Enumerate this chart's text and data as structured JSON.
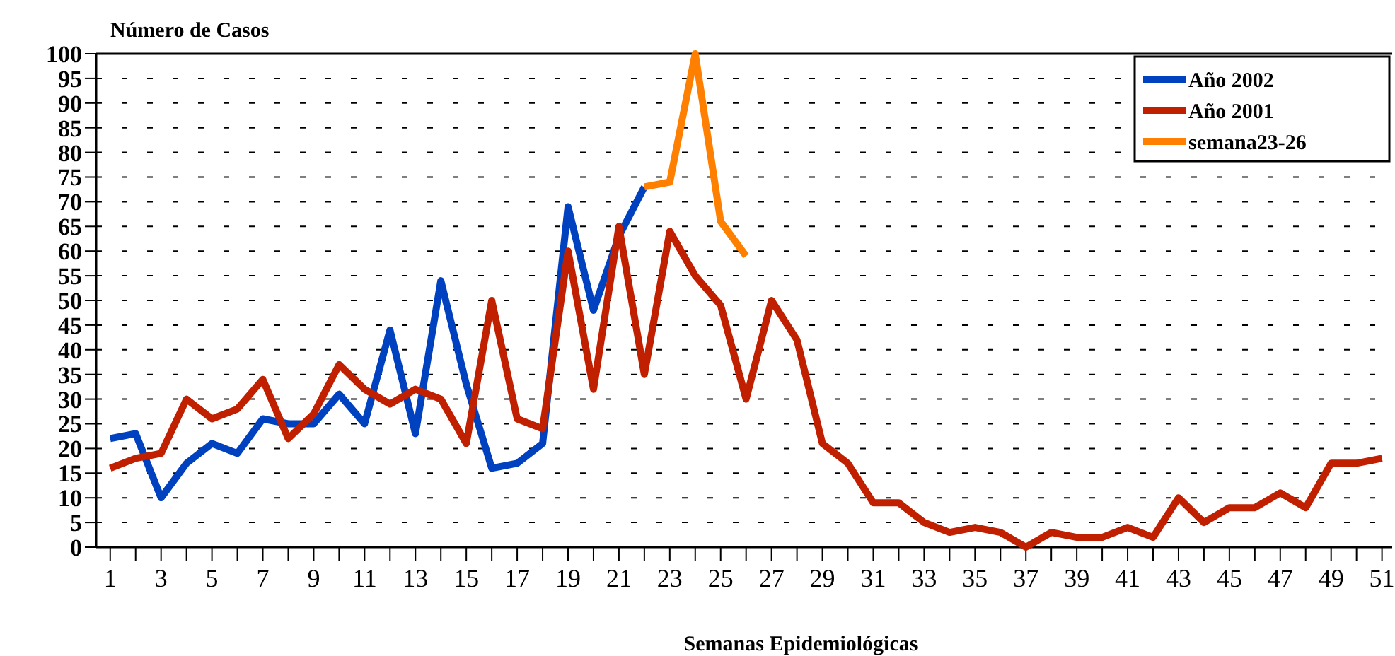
{
  "chart_data": {
    "type": "line",
    "ylabel": "Número de Casos",
    "xlabel": "Semanas Epidemiológicas",
    "xlim": [
      0.45,
      51.4
    ],
    "xticks": [
      1,
      {
        "value": 2,
        "label": null
      },
      3,
      {
        "value": 4,
        "label": null
      },
      5,
      {
        "value": 6,
        "label": null
      },
      7,
      {
        "value": 8,
        "label": null
      },
      9,
      {
        "value": 10,
        "label": null
      },
      11,
      {
        "value": 12,
        "label": null
      },
      13,
      {
        "value": 14,
        "label": null
      },
      15,
      {
        "value": 16,
        "label": null
      },
      17,
      {
        "value": 18,
        "label": null
      },
      19,
      {
        "value": 20,
        "label": null
      },
      21,
      {
        "value": 22,
        "label": null
      },
      23,
      {
        "value": 24,
        "label": null
      },
      25,
      {
        "value": 26,
        "label": null
      },
      27,
      {
        "value": 28,
        "label": null
      },
      29,
      {
        "value": 30,
        "label": null
      },
      31,
      {
        "value": 32,
        "label": null
      },
      33,
      {
        "value": 34,
        "label": null
      },
      35,
      {
        "value": 36,
        "label": null
      },
      37,
      {
        "value": 38,
        "label": null
      },
      39,
      {
        "value": 40,
        "label": null
      },
      41,
      {
        "value": 42,
        "label": null
      },
      43,
      {
        "value": 44,
        "label": null
      },
      45,
      {
        "value": 46,
        "label": null
      },
      47,
      {
        "value": 48,
        "label": null
      },
      49,
      {
        "value": 50,
        "label": null
      },
      51
    ],
    "ylim": [
      0,
      100
    ],
    "yticks": [
      0,
      5,
      10,
      15,
      20,
      25,
      30,
      35,
      40,
      45,
      50,
      55,
      60,
      65,
      70,
      75,
      80,
      85,
      90,
      95,
      100
    ],
    "grid": "y",
    "legend": "top right",
    "line_style": "solid",
    "marker": "none",
    "series": [
      {
        "name": "Año 2002",
        "color": "#0041c0",
        "x": [
          1,
          2,
          3,
          4,
          5,
          6,
          7,
          8,
          9,
          10,
          11,
          12,
          13,
          14,
          15,
          16,
          17,
          18,
          19,
          20,
          21,
          22
        ],
        "values": [
          22,
          23,
          10,
          17,
          21,
          19,
          26,
          25,
          25,
          31,
          25,
          44,
          23,
          54,
          33,
          16,
          17,
          21,
          69,
          48,
          63,
          73
        ]
      },
      {
        "name": "Año 2001",
        "color": "#c02000",
        "x": [
          1,
          2,
          3,
          4,
          5,
          6,
          7,
          8,
          9,
          10,
          11,
          12,
          13,
          14,
          15,
          16,
          17,
          18,
          19,
          20,
          21,
          22,
          23,
          24,
          25,
          26,
          27,
          28,
          29,
          30,
          31,
          32,
          33,
          34,
          35,
          36,
          37,
          38,
          39,
          40,
          41,
          42,
          43,
          44,
          45,
          46,
          47,
          48,
          49,
          50,
          51
        ],
        "values": [
          16,
          18,
          19,
          30,
          26,
          28,
          34,
          22,
          27,
          37,
          32,
          29,
          32,
          30,
          21,
          50,
          26,
          24,
          60,
          32,
          65,
          35,
          64,
          55,
          49,
          30,
          50,
          42,
          21,
          17,
          9,
          9,
          5,
          3,
          4,
          3,
          0,
          3,
          2,
          2,
          4,
          2,
          10,
          5,
          8,
          8,
          11,
          8,
          17,
          17,
          18
        ]
      },
      {
        "name": "semana23-26",
        "color": "#ff8000",
        "x": [
          22,
          23,
          24,
          25,
          26
        ],
        "values": [
          73,
          74,
          100,
          66,
          59
        ]
      }
    ]
  }
}
